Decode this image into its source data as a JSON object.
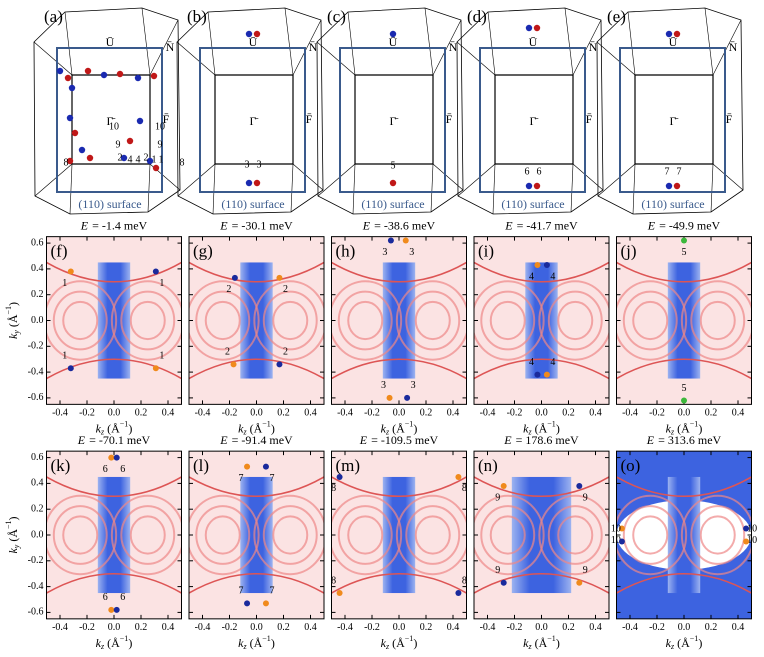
{
  "bz_labels": {
    "U": "Ū",
    "N": "N̄",
    "G": "Γ̄",
    "F": "F̄",
    "surface": "(110) surface"
  },
  "top_panels": [
    {
      "tag": "(a)",
      "numbers": [
        "10",
        "9",
        "2",
        "4",
        "4",
        "2",
        "1",
        "8",
        "10",
        "9",
        "1",
        "8"
      ]
    },
    {
      "tag": "(b)",
      "numbers": [
        "3",
        "3"
      ]
    },
    {
      "tag": "(c)",
      "numbers": [
        "5"
      ]
    },
    {
      "tag": "(d)",
      "numbers": [
        "6",
        "6"
      ]
    },
    {
      "tag": "(e)",
      "numbers": [
        "7",
        "7"
      ]
    }
  ],
  "axes": {
    "xlabel": [
      "k",
      "z",
      " (Å",
      "−1",
      ")"
    ],
    "ylabel": [
      "k",
      "y",
      " (Å",
      "−1",
      ")"
    ],
    "xlim": [
      -0.5,
      0.5
    ],
    "ylim": [
      -0.65,
      0.65
    ],
    "xticks": [
      {
        "value": -0.4,
        "label": "-0.4"
      },
      {
        "value": -0.2,
        "label": "-0.2"
      },
      {
        "value": 0,
        "label": "0.0"
      },
      {
        "value": 0.2,
        "label": "0.2"
      },
      {
        "value": 0.4,
        "label": "0.4"
      }
    ],
    "yticks": [
      {
        "value": 0.6,
        "label": "0.6"
      },
      {
        "value": 0.4,
        "label": "0.4"
      },
      {
        "value": 0.2,
        "label": "0.2"
      },
      {
        "value": 0,
        "label": "0.0"
      },
      {
        "value": -0.2,
        "label": "-0.2"
      },
      {
        "value": -0.4,
        "label": "-0.4"
      },
      {
        "value": -0.6,
        "label": "-0.6"
      }
    ]
  },
  "energy_var": "E",
  "map_panels": [
    {
      "tag": "(f)",
      "title": "= -1.4 meV",
      "label": "1",
      "points": [
        [
          -0.32,
          0.38,
          "#f08a1c"
        ],
        [
          0.31,
          0.38,
          "#1a2a9c"
        ],
        [
          -0.32,
          -0.37,
          "#1a2a9c"
        ],
        [
          0.31,
          -0.37,
          "#f08a1c"
        ]
      ]
    },
    {
      "tag": "(g)",
      "title": "= -30.1 meV",
      "label": "2",
      "points": [
        [
          -0.16,
          0.33,
          "#1a2a9c"
        ],
        [
          0.17,
          0.33,
          "#f08a1c"
        ],
        [
          -0.17,
          -0.34,
          "#f08a1c"
        ],
        [
          0.17,
          -0.34,
          "#1a2a9c"
        ]
      ]
    },
    {
      "tag": "(h)",
      "title": "= -38.6 meV",
      "label": "3",
      "points": [
        [
          -0.06,
          0.62,
          "#1a2a9c"
        ],
        [
          0.05,
          0.62,
          "#f08a1c"
        ],
        [
          -0.07,
          -0.6,
          "#f08a1c"
        ],
        [
          0.06,
          -0.6,
          "#1a2a9c"
        ]
      ]
    },
    {
      "tag": "(i)",
      "title": "= -41.7 meV",
      "label": "4",
      "points": [
        [
          -0.03,
          0.43,
          "#f08a1c"
        ],
        [
          0.04,
          0.43,
          "#1a2a9c"
        ],
        [
          -0.03,
          -0.42,
          "#1a2a9c"
        ],
        [
          0.04,
          -0.42,
          "#f08a1c"
        ]
      ]
    },
    {
      "tag": "(j)",
      "title": "= -49.9 meV",
      "label": "5",
      "points": [
        [
          0,
          0.62,
          "#3cb83c"
        ],
        [
          0,
          -0.62,
          "#3cb83c"
        ]
      ]
    },
    {
      "tag": "(k)",
      "title": "= -70.1 meV",
      "label": "6",
      "points": [
        [
          -0.02,
          0.6,
          "#f08a1c"
        ],
        [
          0.02,
          0.6,
          "#1a2a9c"
        ],
        [
          -0.02,
          -0.58,
          "#f08a1c"
        ],
        [
          0.02,
          -0.58,
          "#1a2a9c"
        ]
      ]
    },
    {
      "tag": "(l)",
      "title": "= -91.4 meV",
      "label": "7",
      "points": [
        [
          -0.07,
          0.53,
          "#f08a1c"
        ],
        [
          0.07,
          0.53,
          "#1a2a9c"
        ],
        [
          -0.07,
          -0.53,
          "#1a2a9c"
        ],
        [
          0.07,
          -0.53,
          "#f08a1c"
        ]
      ]
    },
    {
      "tag": "(m)",
      "title": "= -109.5 meV",
      "label": "8",
      "points": [
        [
          -0.44,
          0.45,
          "#1a2a9c"
        ],
        [
          0.44,
          0.45,
          "#f08a1c"
        ],
        [
          -0.44,
          -0.45,
          "#f08a1c"
        ],
        [
          0.44,
          -0.45,
          "#1a2a9c"
        ]
      ]
    },
    {
      "tag": "(n)",
      "title": "= 178.6 meV",
      "label": "9",
      "points": [
        [
          -0.28,
          0.38,
          "#f08a1c"
        ],
        [
          0.28,
          0.38,
          "#1a2a9c"
        ],
        [
          -0.28,
          -0.37,
          "#1a2a9c"
        ],
        [
          0.28,
          -0.37,
          "#f08a1c"
        ]
      ]
    },
    {
      "tag": "(o)",
      "title": "= 313.6 meV",
      "label": "10",
      "points": [
        [
          -0.46,
          0.05,
          "#f08a1c"
        ],
        [
          -0.46,
          -0.05,
          "#1a2a9c"
        ],
        [
          0.46,
          0.05,
          "#1a2a9c"
        ],
        [
          0.46,
          -0.05,
          "#f08a1c"
        ]
      ]
    }
  ]
}
